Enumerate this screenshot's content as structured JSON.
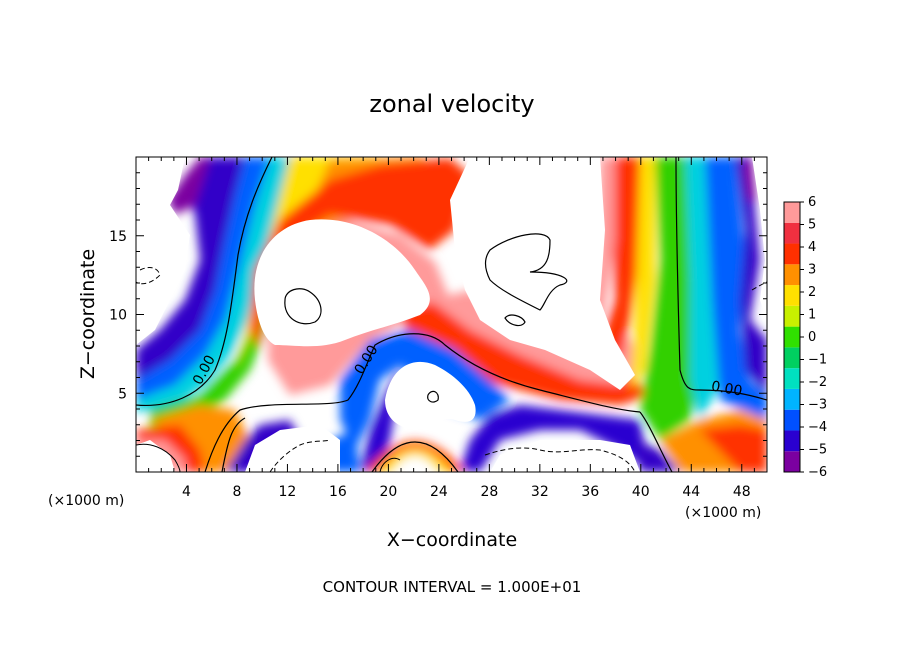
{
  "chart_data": {
    "type": "heatmap",
    "title": "zonal velocity",
    "xlabel": "X−coordinate",
    "ylabel": "Z−coordinate",
    "x_unit_left": "(×1000 m)",
    "x_unit_right": "(×1000 m)",
    "xlim": [
      0,
      50
    ],
    "ylim": [
      0,
      20
    ],
    "x_ticks": [
      4,
      8,
      12,
      16,
      20,
      24,
      28,
      32,
      36,
      40,
      44,
      48
    ],
    "y_ticks": [
      5,
      10,
      15
    ],
    "colorbar": {
      "min": -6,
      "max": 6,
      "ticks": [
        6,
        5,
        4,
        3,
        2,
        1,
        0,
        -1,
        -2,
        -3,
        -4,
        -5,
        -6
      ],
      "tick_labels": [
        "6",
        "5",
        "4",
        "3",
        "2",
        "1",
        "0",
        "−1",
        "−2",
        "−3",
        "−4",
        "−5",
        "−6"
      ],
      "colors": [
        "#7b00a0",
        "#2a00d0",
        "#0050ff",
        "#00b4ff",
        "#00e0c0",
        "#00d060",
        "#30e000",
        "#c8f000",
        "#ffe000",
        "#ff9000",
        "#ff3000",
        "#f03040",
        "#ff9a9a"
      ]
    },
    "out_of_range_color": "#ffffff",
    "contour_labels": [
      "0.00",
      "0.00",
      "0.00"
    ],
    "footer": "CONTOUR INTERVAL = 1.000E+01"
  }
}
